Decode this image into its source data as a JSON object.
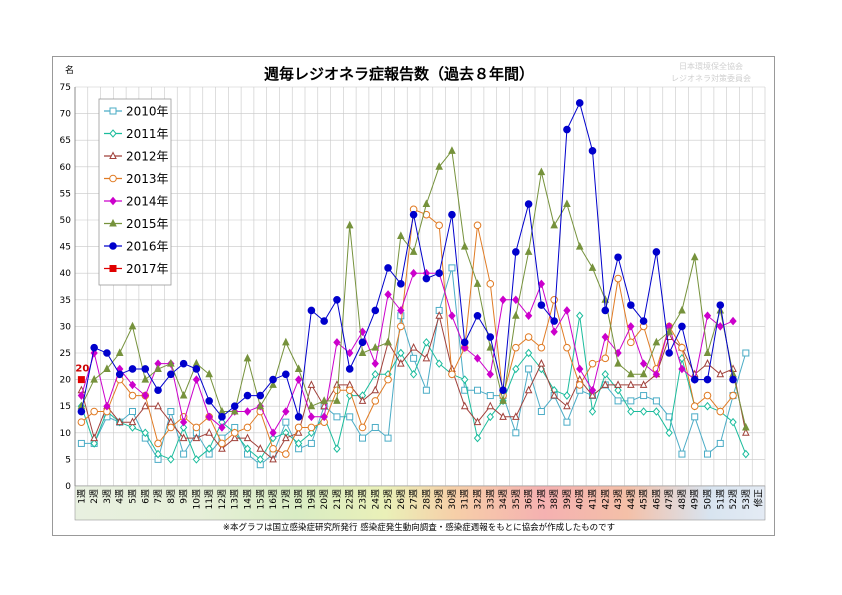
{
  "chart_data": {
    "type": "line",
    "title": "週毎レジオネラ症報告数（過去８年間）",
    "ylabel": "名",
    "ylim": [
      0,
      75
    ],
    "yticks": [
      0,
      5,
      10,
      15,
      20,
      25,
      30,
      35,
      40,
      45,
      50,
      55,
      60,
      65,
      70,
      75
    ],
    "categories": [
      "1週",
      "2週",
      "3週",
      "4週",
      "5週",
      "6週",
      "7週",
      "8週",
      "9週",
      "10週",
      "11週",
      "12週",
      "13週",
      "14週",
      "15週",
      "16週",
      "17週",
      "18週",
      "19週",
      "20週",
      "21週",
      "22週",
      "23週",
      "24週",
      "25週",
      "26週",
      "27週",
      "28週",
      "29週",
      "30週",
      "31週",
      "32週",
      "33週",
      "34週",
      "35週",
      "36週",
      "37週",
      "38週",
      "39週",
      "40週",
      "41週",
      "42週",
      "43週",
      "44週",
      "45週",
      "46週",
      "47週",
      "48週",
      "49週",
      "50週",
      "51週",
      "52週",
      "53週",
      "修正"
    ],
    "series": [
      {
        "name": "2010年",
        "color": "#4bacc6",
        "marker": "square-open",
        "values": [
          8,
          8,
          13,
          12,
          14,
          9,
          5,
          14,
          6,
          10,
          6,
          9,
          11,
          6,
          4,
          6,
          12,
          7,
          8,
          15,
          13,
          13,
          9,
          11,
          9,
          32,
          24,
          18,
          33,
          41,
          18,
          18,
          17,
          17,
          10,
          22,
          14,
          17,
          12,
          18,
          17,
          19,
          16,
          16,
          17,
          16,
          13,
          6,
          13,
          6,
          8,
          17,
          25,
          null
        ]
      },
      {
        "name": "2011年",
        "color": "#1abc9c",
        "marker": "diamond-open",
        "values": [
          15,
          8,
          14,
          12,
          11,
          10,
          6,
          5,
          11,
          5,
          7,
          12,
          10,
          7,
          5,
          9,
          10,
          8,
          10,
          13,
          7,
          17,
          17,
          21,
          21,
          25,
          21,
          27,
          23,
          21,
          20,
          9,
          13,
          16,
          22,
          25,
          22,
          18,
          17,
          32,
          14,
          21,
          18,
          14,
          14,
          14,
          10,
          24,
          15,
          15,
          14,
          12,
          6,
          null
        ]
      },
      {
        "name": "2012年",
        "color": "#a0403a",
        "marker": "triangle-open",
        "values": [
          18,
          9,
          15,
          12,
          12,
          15,
          15,
          12,
          9,
          9,
          10,
          7,
          9,
          9,
          7,
          5,
          9,
          10,
          19,
          15,
          19,
          19,
          16,
          18,
          27,
          23,
          26,
          24,
          32,
          22,
          15,
          12,
          15,
          13,
          13,
          18,
          23,
          17,
          15,
          20,
          17,
          19,
          19,
          19,
          19,
          21,
          28,
          26,
          21,
          23,
          21,
          22,
          10,
          null
        ]
      },
      {
        "name": "2013年",
        "color": "#e07b24",
        "marker": "circle-open",
        "values": [
          12,
          14,
          14,
          20,
          17,
          17,
          8,
          11,
          13,
          11,
          13,
          8,
          10,
          11,
          14,
          7,
          6,
          11,
          11,
          12,
          18,
          18,
          11,
          16,
          20,
          30,
          52,
          51,
          49,
          21,
          26,
          49,
          38,
          17,
          26,
          28,
          26,
          35,
          26,
          19,
          23,
          24,
          39,
          27,
          30,
          22,
          30,
          26,
          15,
          17,
          14,
          17,
          null,
          null
        ]
      },
      {
        "name": "2014年",
        "color": "#cc00cc",
        "marker": "diamond-filled",
        "values": [
          17,
          25,
          15,
          22,
          19,
          17,
          23,
          23,
          12,
          20,
          13,
          11,
          14,
          14,
          15,
          10,
          14,
          20,
          13,
          13,
          27,
          25,
          29,
          23,
          36,
          33,
          40,
          40,
          40,
          32,
          26,
          24,
          21,
          35,
          35,
          32,
          38,
          29,
          33,
          22,
          18,
          28,
          25,
          30,
          23,
          21,
          30,
          22,
          20,
          32,
          30,
          31,
          null,
          null
        ]
      },
      {
        "name": "2015年",
        "color": "#76923c",
        "marker": "triangle-filled",
        "values": [
          15,
          20,
          22,
          25,
          30,
          20,
          22,
          23,
          17,
          23,
          21,
          14,
          14,
          24,
          15,
          19,
          27,
          22,
          15,
          16,
          16,
          49,
          25,
          26,
          27,
          47,
          44,
          53,
          60,
          63,
          45,
          38,
          26,
          16,
          32,
          44,
          59,
          49,
          53,
          45,
          41,
          35,
          23,
          21,
          21,
          27,
          29,
          33,
          43,
          25,
          33,
          21,
          11,
          null
        ]
      },
      {
        "name": "2016年",
        "color": "#0000cc",
        "marker": "circle-filled",
        "values": [
          14,
          26,
          25,
          21,
          22,
          22,
          18,
          21,
          23,
          22,
          16,
          13,
          15,
          17,
          17,
          20,
          21,
          13,
          33,
          31,
          35,
          22,
          27,
          33,
          41,
          38,
          51,
          39,
          40,
          51,
          27,
          32,
          28,
          18,
          44,
          53,
          34,
          31,
          67,
          72,
          63,
          33,
          43,
          34,
          31,
          44,
          25,
          30,
          20,
          20,
          34,
          20,
          null,
          null
        ]
      },
      {
        "name": "2017年",
        "color": "#e00000",
        "marker": "square-filled",
        "values": [
          20,
          null,
          null,
          null,
          null,
          null,
          null,
          null,
          null,
          null,
          null,
          null,
          null,
          null,
          null,
          null,
          null,
          null,
          null,
          null,
          null,
          null,
          null,
          null,
          null,
          null,
          null,
          null,
          null,
          null,
          null,
          null,
          null,
          null,
          null,
          null,
          null,
          null,
          null,
          null,
          null,
          null,
          null,
          null,
          null,
          null,
          null,
          null,
          null,
          null,
          null,
          null,
          null,
          null
        ]
      }
    ],
    "data_labels": [
      {
        "series": "2017年",
        "category": "1週",
        "text": "20"
      }
    ],
    "footnote": "※本グラフは国立感染症研究所発行 感染症発生動向調査・感染症週報をもとに協会が作成したものです",
    "watermark": [
      "日本環境保全協会",
      "レジオネラ対策委員会"
    ],
    "legend_position": "top-left",
    "grid": true
  }
}
